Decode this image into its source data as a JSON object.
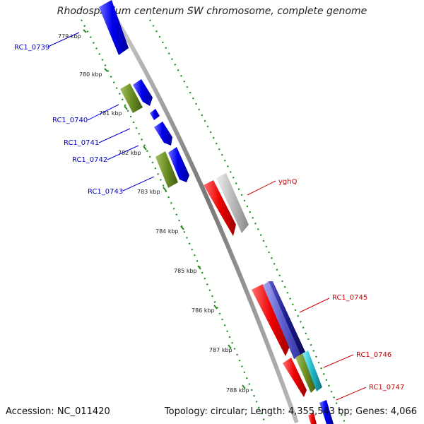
{
  "title": "Rhodospirillum centenum SW chromosome, complete genome",
  "footer": {
    "accession": "Accession: NC_011420",
    "summary": "Topology: circular; Length: 4,355,543 bp; Genes: 4,066"
  },
  "ruler_labels": [
    "779 kbp",
    "780 kbp",
    "781 kbp",
    "782 kbp",
    "783 kbp",
    "784 kbp",
    "785 kbp",
    "786 kbp",
    "787 kbp",
    "788 kbp"
  ],
  "genes_left": [
    "RC1_0739",
    "RC1_0740",
    "RC1_0741",
    "RC1_0742",
    "RC1_0743"
  ],
  "genes_right": [
    "yghQ",
    "RC1_0745",
    "RC1_0746",
    "RC1_0747"
  ],
  "colors": {
    "blue_gene": "#0000ee",
    "olive_gene": "#6b8e23",
    "red_gene": "#ee0000",
    "grey_gene": "#bbbbbb",
    "navy_gene": "#1a1a8c",
    "teal_gene": "#20b8c8",
    "left_label": "#0000cc",
    "right_label": "#cc0000",
    "dotted_track": "#228b22"
  }
}
